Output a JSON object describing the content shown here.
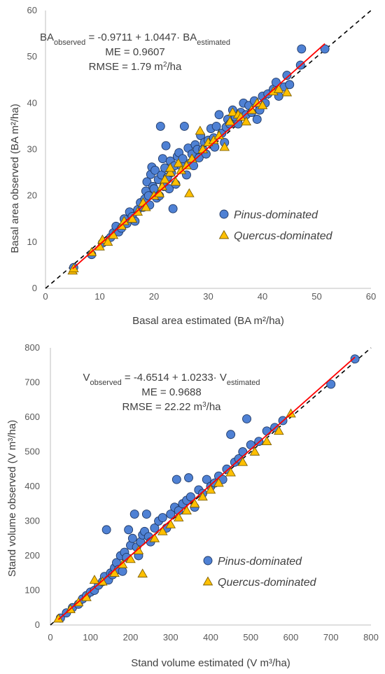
{
  "chart_data": [
    {
      "type": "scatter",
      "xlabel": "Basal area estimated (BA m²/ha)",
      "ylabel": "Basal area observed (BA m²/ha)",
      "xlim": [
        0,
        60
      ],
      "ylim": [
        0,
        60
      ],
      "x_ticks": [
        "0",
        "10",
        "20",
        "30",
        "40",
        "50",
        "60"
      ],
      "y_ticks": [
        "0",
        "10",
        "20",
        "30",
        "40",
        "50",
        "60"
      ],
      "grid": false,
      "legend_position": "right",
      "equation": {
        "lhs_main": "BA",
        "lhs_sub": "observed",
        "mid": " = -0.9711 + 1.0447· BA",
        "rhs_sub": "estimated"
      },
      "stats": [
        {
          "pre": "ME = 0.9607",
          "sup": "",
          "post": ""
        },
        {
          "pre": "RMSE = 1.79 m",
          "sup": "2",
          "post": "/ha"
        }
      ],
      "fit_line": {
        "intercept": -0.9711,
        "slope": 1.0447,
        "x_range": [
          5,
          51.5
        ],
        "color": "#ff0000"
      },
      "identity_line": {
        "style": "dashed",
        "color": "#000000"
      },
      "series": [
        {
          "name": "Pinus-dominated",
          "marker": "circle",
          "color": "#4f81d4",
          "points": [
            [
              5.2,
              4.5
            ],
            [
              8.5,
              7.3
            ],
            [
              10.5,
              9.8
            ],
            [
              12,
              11
            ],
            [
              12.5,
              12
            ],
            [
              13,
              13.4
            ],
            [
              13.5,
              12.2
            ],
            [
              14,
              13
            ],
            [
              14.5,
              15
            ],
            [
              15,
              14
            ],
            [
              15.5,
              16.5
            ],
            [
              16,
              15.5
            ],
            [
              16.5,
              14.5
            ],
            [
              17,
              17
            ],
            [
              17.5,
              18.5
            ],
            [
              18,
              17.5
            ],
            [
              18.3,
              19.3
            ],
            [
              18.5,
              21
            ],
            [
              18.7,
              23
            ],
            [
              19,
              20
            ],
            [
              19.2,
              18
            ],
            [
              19.4,
              24.6
            ],
            [
              19.6,
              26.2
            ],
            [
              19.8,
              22
            ],
            [
              20,
              21.5
            ],
            [
              20.2,
              25.5
            ],
            [
              20.5,
              19.5
            ],
            [
              20.8,
              23.5
            ],
            [
              21,
              20
            ],
            [
              21.2,
              35
            ],
            [
              21.4,
              24.5
            ],
            [
              21.6,
              28
            ],
            [
              21.8,
              22
            ],
            [
              22,
              26
            ],
            [
              22.2,
              30.8
            ],
            [
              22.5,
              24
            ],
            [
              22.8,
              21.5
            ],
            [
              23,
              27.5
            ],
            [
              23.2,
              25
            ],
            [
              23.5,
              17.2
            ],
            [
              23.8,
              26.5
            ],
            [
              24,
              22.5
            ],
            [
              24.3,
              28.5
            ],
            [
              24.6,
              29.3
            ],
            [
              25,
              26.5
            ],
            [
              25.3,
              28
            ],
            [
              25.6,
              35
            ],
            [
              26,
              24.5
            ],
            [
              26.3,
              30.3
            ],
            [
              26.6,
              27
            ],
            [
              27,
              29
            ],
            [
              27.3,
              26.5
            ],
            [
              27.6,
              31
            ],
            [
              28,
              30
            ],
            [
              28.3,
              28.2
            ],
            [
              28.6,
              33
            ],
            [
              29,
              30
            ],
            [
              29.3,
              31.5
            ],
            [
              29.6,
              29
            ],
            [
              30,
              32
            ],
            [
              30.5,
              34.5
            ],
            [
              31,
              32.5
            ],
            [
              31.2,
              30.5
            ],
            [
              31.5,
              35
            ],
            [
              32,
              37.5
            ],
            [
              32.5,
              33.5
            ],
            [
              33,
              31.5
            ],
            [
              33.3,
              34.8
            ],
            [
              33.6,
              36.5
            ],
            [
              34,
              35.5
            ],
            [
              34.5,
              38.5
            ],
            [
              35,
              37
            ],
            [
              35.5,
              35.5
            ],
            [
              36,
              38
            ],
            [
              36.5,
              40
            ],
            [
              37,
              37.5
            ],
            [
              37.5,
              39.5
            ],
            [
              38,
              38
            ],
            [
              38.5,
              40.5
            ],
            [
              39,
              36.5
            ],
            [
              39.5,
              39
            ],
            [
              39.5,
              38.5
            ],
            [
              40,
              41.5
            ],
            [
              40.5,
              40
            ],
            [
              41,
              42
            ],
            [
              42,
              43
            ],
            [
              42.5,
              44.5
            ],
            [
              43,
              41.5
            ],
            [
              44,
              43.5
            ],
            [
              44.5,
              46
            ],
            [
              45,
              44
            ],
            [
              47,
              48.2
            ],
            [
              47.2,
              51.7
            ],
            [
              51.5,
              51.7
            ]
          ]
        },
        {
          "name": "Quercus-dominated",
          "marker": "triangle",
          "color": "#ffc000",
          "points": [
            [
              5,
              3.8
            ],
            [
              5.2,
              4.3
            ],
            [
              8.5,
              7.8
            ],
            [
              10,
              9
            ],
            [
              10.5,
              10.5
            ],
            [
              11.5,
              10
            ],
            [
              12.5,
              11.5
            ],
            [
              14,
              13.5
            ],
            [
              14.5,
              14.5
            ],
            [
              16,
              15
            ],
            [
              17,
              16.5
            ],
            [
              18,
              18.5
            ],
            [
              18.5,
              17.5
            ],
            [
              20,
              20
            ],
            [
              21,
              20.5
            ],
            [
              21.5,
              22
            ],
            [
              22,
              23.5
            ],
            [
              23,
              25
            ],
            [
              23,
              26
            ],
            [
              24,
              23
            ],
            [
              24.5,
              27
            ],
            [
              25,
              25.5
            ],
            [
              26,
              26.5
            ],
            [
              26.5,
              20.5
            ],
            [
              27,
              28
            ],
            [
              28.5,
              34
            ],
            [
              29,
              30
            ],
            [
              30,
              31.5
            ],
            [
              31,
              32
            ],
            [
              32,
              33
            ],
            [
              33,
              30.5
            ],
            [
              34,
              36
            ],
            [
              34.5,
              38
            ],
            [
              35.5,
              37.5
            ],
            [
              36,
              37
            ],
            [
              37,
              36
            ],
            [
              38,
              38.5
            ],
            [
              39,
              40
            ],
            [
              40,
              39.5
            ],
            [
              42,
              42.5
            ],
            [
              43,
              43
            ],
            [
              44.5,
              42.3
            ]
          ]
        }
      ]
    },
    {
      "type": "scatter",
      "xlabel": "Stand volume estimated (V m³/ha)",
      "ylabel": "Stand volume observed (V m³/ha)",
      "xlim": [
        0,
        800
      ],
      "ylim": [
        0,
        800
      ],
      "x_ticks": [
        "0",
        "100",
        "200",
        "300",
        "400",
        "500",
        "600",
        "700",
        "800"
      ],
      "y_ticks": [
        "0",
        "100",
        "200",
        "300",
        "400",
        "500",
        "600",
        "700",
        "800"
      ],
      "grid": false,
      "legend_position": "right",
      "equation": {
        "lhs_main": "V",
        "lhs_sub": "observed",
        "mid": " = -4.6514 + 1.0233· V",
        "rhs_sub": "estimated"
      },
      "stats": [
        {
          "pre": "ME = 0.9688",
          "sup": "",
          "post": ""
        },
        {
          "pre": "RMSE = 22.22 m",
          "sup": "3",
          "post": "/ha"
        }
      ],
      "fit_line": {
        "intercept": -4.6514,
        "slope": 1.0233,
        "x_range": [
          20,
          760
        ],
        "color": "#ff0000"
      },
      "identity_line": {
        "style": "dashed",
        "color": "#000000"
      },
      "series": [
        {
          "name": "Pinus-dominated",
          "marker": "circle",
          "color": "#4f81d4",
          "points": [
            [
              25,
              20
            ],
            [
              40,
              35
            ],
            [
              55,
              50
            ],
            [
              70,
              60
            ],
            [
              80,
              75
            ],
            [
              90,
              85
            ],
            [
              100,
              95
            ],
            [
              110,
              100
            ],
            [
              120,
              115
            ],
            [
              130,
              125
            ],
            [
              135,
              140
            ],
            [
              140,
              275
            ],
            [
              145,
              130
            ],
            [
              150,
              150
            ],
            [
              155,
              145
            ],
            [
              160,
              165
            ],
            [
              165,
              180
            ],
            [
              170,
              160
            ],
            [
              175,
              200
            ],
            [
              180,
              155
            ],
            [
              185,
              210
            ],
            [
              190,
              195
            ],
            [
              195,
              275
            ],
            [
              200,
              230
            ],
            [
              205,
              250
            ],
            [
              210,
              320
            ],
            [
              215,
              225
            ],
            [
              220,
              200
            ],
            [
              225,
              240
            ],
            [
              230,
              260
            ],
            [
              235,
              270
            ],
            [
              240,
              320
            ],
            [
              245,
              255
            ],
            [
              250,
              240
            ],
            [
              260,
              280
            ],
            [
              270,
              300
            ],
            [
              280,
              310
            ],
            [
              290,
              280
            ],
            [
              300,
              320
            ],
            [
              310,
              340
            ],
            [
              315,
              420
            ],
            [
              320,
              330
            ],
            [
              330,
              350
            ],
            [
              340,
              360
            ],
            [
              345,
              425
            ],
            [
              350,
              370
            ],
            [
              360,
              340
            ],
            [
              370,
              390
            ],
            [
              380,
              380
            ],
            [
              390,
              420
            ],
            [
              400,
              400
            ],
            [
              410,
              410
            ],
            [
              420,
              430
            ],
            [
              430,
              420
            ],
            [
              440,
              450
            ],
            [
              450,
              550
            ],
            [
              460,
              470
            ],
            [
              470,
              480
            ],
            [
              480,
              500
            ],
            [
              490,
              595
            ],
            [
              500,
              520
            ],
            [
              520,
              530
            ],
            [
              540,
              560
            ],
            [
              560,
              570
            ],
            [
              580,
              590
            ],
            [
              700,
              695
            ],
            [
              760,
              768
            ]
          ]
        },
        {
          "name": "Quercus-dominated",
          "marker": "triangle",
          "color": "#ffc000",
          "points": [
            [
              20,
              18
            ],
            [
              50,
              45
            ],
            [
              70,
              65
            ],
            [
              90,
              80
            ],
            [
              110,
              130
            ],
            [
              130,
              125
            ],
            [
              160,
              150
            ],
            [
              180,
              175
            ],
            [
              200,
              190
            ],
            [
              220,
              215
            ],
            [
              230,
              148
            ],
            [
              260,
              250
            ],
            [
              280,
              270
            ],
            [
              300,
              290
            ],
            [
              320,
              310
            ],
            [
              340,
              330
            ],
            [
              360,
              350
            ],
            [
              380,
              370
            ],
            [
              400,
              390
            ],
            [
              420,
              410
            ],
            [
              450,
              440
            ],
            [
              480,
              470
            ],
            [
              510,
              500
            ],
            [
              540,
              530
            ],
            [
              570,
              560
            ],
            [
              600,
              610
            ]
          ]
        }
      ]
    }
  ]
}
